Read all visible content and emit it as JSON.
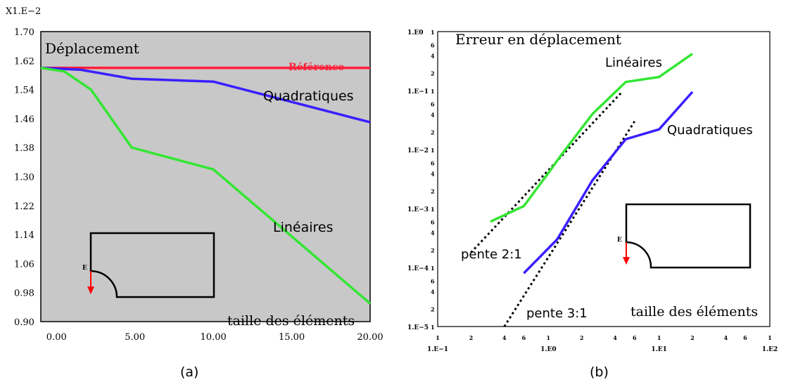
{
  "colors": {
    "reference": "#ff1f3a",
    "quadratic": "#3a1fff",
    "linear": "#33e633",
    "frame": "#000000",
    "arrow": "#ff0000"
  },
  "chart_data": [
    {
      "type": "line",
      "title": "Déplacement",
      "caption": "(a)",
      "xlabel": "taille des éléments",
      "y_multiplier": "X1.E−2",
      "xlim": [
        -1,
        20
      ],
      "ylim": [
        0.9,
        1.7
      ],
      "x_ticks": [
        "0.00",
        "5.00",
        "10.00",
        "15.00",
        "20.00"
      ],
      "y_ticks": [
        "0.90",
        "0.98",
        "1.06",
        "1.14",
        "1.22",
        "1.30",
        "1.38",
        "1.46",
        "1.54",
        "1.62",
        "1.70"
      ],
      "series": [
        {
          "name": "Référence",
          "color": "#ff1f3a",
          "x": [
            -1,
            20
          ],
          "y": [
            1.6,
            1.6
          ]
        },
        {
          "name": "Quadratiques",
          "color": "#3a1fff",
          "x": [
            -1,
            1.5,
            4.8,
            10,
            20
          ],
          "y": [
            1.6,
            1.595,
            1.57,
            1.562,
            1.45
          ]
        },
        {
          "name": "Linéaires",
          "color": "#33e633",
          "x": [
            -1,
            0.5,
            2.2,
            4.8,
            10,
            20
          ],
          "y": [
            1.6,
            1.59,
            1.54,
            1.38,
            1.32,
            0.95
          ]
        }
      ],
      "inset_label": "E"
    },
    {
      "type": "line",
      "log_x": true,
      "log_y": true,
      "title": "Erreur en déplacement",
      "caption": "(b)",
      "xlabel": "taille des éléments",
      "xlim": [
        0.1,
        100
      ],
      "ylim": [
        1e-05,
        1
      ],
      "x_major_ticks": [
        "1.E−1",
        "1.E0",
        "1.E1",
        "1.E2"
      ],
      "y_major_ticks": [
        "1.E0",
        "1.E−1",
        "1.E−2",
        "1.E−3",
        "1.E−4",
        "1.E−5"
      ],
      "minor_labels": [
        "2",
        "4",
        "6"
      ],
      "series": [
        {
          "name": "Linéaires",
          "color": "#33e633",
          "x": [
            0.3,
            0.6,
            1.0,
            1.3,
            2.5,
            5,
            10,
            20
          ],
          "y": [
            0.0006,
            0.0011,
            0.004,
            0.008,
            0.04,
            0.14,
            0.17,
            0.42
          ]
        },
        {
          "name": "Quadratiques",
          "color": "#3a1fff",
          "x": [
            0.6,
            1.2,
            2.5,
            5,
            10,
            20
          ],
          "y": [
            8e-05,
            0.0003,
            0.003,
            0.015,
            0.022,
            0.095
          ]
        }
      ],
      "guides": [
        {
          "label": "pente 2:1",
          "x": [
            0.2,
            4.5
          ],
          "y": [
            0.00018,
            0.09
          ]
        },
        {
          "label": "pente 3:1",
          "x": [
            0.4,
            6
          ],
          "y": [
            1e-05,
            0.03
          ]
        }
      ],
      "inset_label": "E"
    }
  ]
}
